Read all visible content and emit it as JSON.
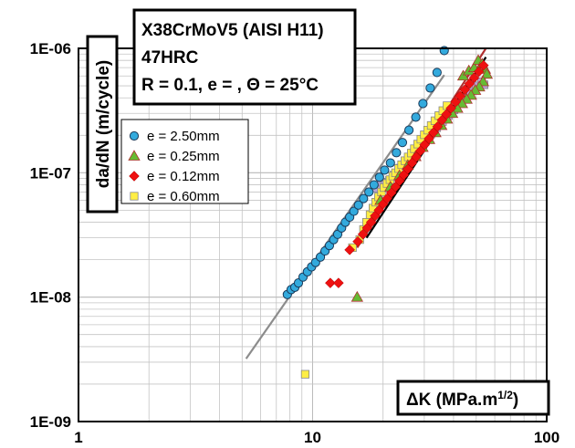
{
  "chart_data": {
    "type": "scatter",
    "title_lines": [
      "X38CrMoV5 (AISI H11)",
      "47HRC",
      "R = 0.1, e = , Θ = 25°C"
    ],
    "ylabel": "da/dN (m/cycle)",
    "xlabel": "ΔK (MPa.m",
    "xlabel_sup": "1/2",
    "xlabel_end": ")",
    "x_scale": "log",
    "y_scale": "log",
    "xlim": [
      1,
      100
    ],
    "ylim": [
      1e-09,
      1e-06
    ],
    "x_tick_labels": [
      "1",
      "10",
      "100"
    ],
    "y_tick_labels": [
      "1E-09",
      "1E-08",
      "1E-07",
      "1E-06"
    ],
    "grid": true,
    "legend_position": "upper-left",
    "colors": {
      "blue": "#33aadd",
      "green": "#66bb33",
      "red": "#ee1111",
      "yellow": "#ffee44",
      "purple": "#b8a4d4"
    },
    "series": [
      {
        "name": "e = 2.50mm",
        "marker": "circle",
        "color": "#33aadd",
        "points": [
          [
            7.8,
            1.05e-08
          ],
          [
            8.1,
            1.15e-08
          ],
          [
            8.4,
            1.2e-08
          ],
          [
            8.7,
            1.3e-08
          ],
          [
            9.1,
            1.45e-08
          ],
          [
            9.5,
            1.6e-08
          ],
          [
            9.9,
            1.75e-08
          ],
          [
            10.3,
            1.9e-08
          ],
          [
            10.8,
            2.1e-08
          ],
          [
            11.3,
            2.35e-08
          ],
          [
            11.8,
            2.6e-08
          ],
          [
            12.3,
            2.9e-08
          ],
          [
            12.8,
            3.2e-08
          ],
          [
            13.3,
            3.6e-08
          ],
          [
            13.8,
            4e-08
          ],
          [
            14.4,
            4.4e-08
          ],
          [
            15.0,
            4.9e-08
          ],
          [
            15.7,
            5.5e-08
          ],
          [
            16.5,
            6.2e-08
          ],
          [
            17.4,
            7e-08
          ],
          [
            18.3,
            8e-08
          ],
          [
            19.3,
            9.2e-08
          ],
          [
            20.3,
            1.05e-07
          ],
          [
            21.5,
            1.2e-07
          ],
          [
            22.8,
            1.45e-07
          ],
          [
            24.2,
            1.75e-07
          ],
          [
            25.8,
            2.2e-07
          ],
          [
            27.6,
            2.8e-07
          ],
          [
            29.6,
            3.6e-07
          ],
          [
            31.8,
            4.8e-07
          ],
          [
            34.0,
            6.4e-07
          ],
          [
            36.5,
            9.6e-07
          ]
        ]
      },
      {
        "name": "e = 0.25mm",
        "marker": "triangle",
        "color": "#66bb33",
        "points": [
          [
            15.5,
            1e-08
          ],
          [
            44.0,
            6e-07
          ],
          [
            46.5,
            6.6e-07
          ],
          [
            49.0,
            7e-07
          ],
          [
            51.0,
            8e-07
          ],
          [
            53.0,
            7.5e-07
          ],
          [
            54.5,
            6.8e-07
          ],
          [
            55.5,
            6.2e-07
          ],
          [
            53.5,
            5.4e-07
          ],
          [
            51.5,
            4.9e-07
          ],
          [
            49.5,
            4.6e-07
          ],
          [
            47.5,
            4.2e-07
          ],
          [
            45.5,
            3.9e-07
          ],
          [
            43.5,
            3.6e-07
          ],
          [
            41.5,
            3.3e-07
          ],
          [
            39.5,
            3e-07
          ],
          [
            37.5,
            2.7e-07
          ],
          [
            35.5,
            2.4e-07
          ],
          [
            33.5,
            2.1e-07
          ],
          [
            31.5,
            1.85e-07
          ],
          [
            29.5,
            1.6e-07
          ],
          [
            27.5,
            1.35e-07
          ],
          [
            25.5,
            1.15e-07
          ],
          [
            23.5,
            9.5e-08
          ],
          [
            21.5,
            7.7e-08
          ],
          [
            19.5,
            6e-08
          ]
        ]
      },
      {
        "name": "e = 0.12mm",
        "marker": "diamond",
        "color": "#ee1111",
        "points": [
          [
            11.9,
            1.3e-08
          ],
          [
            12.9,
            1.3e-08
          ],
          [
            14.4,
            2.4e-08
          ],
          [
            15.6,
            2.8e-08
          ],
          [
            16.4,
            3.2e-08
          ],
          [
            17.1,
            3.6e-08
          ],
          [
            17.8,
            4e-08
          ],
          [
            18.5,
            4.5e-08
          ],
          [
            19.2,
            5e-08
          ],
          [
            20.0,
            5.6e-08
          ],
          [
            20.8,
            6.2e-08
          ],
          [
            21.7,
            6.9e-08
          ],
          [
            22.6,
            7.7e-08
          ],
          [
            23.5,
            8.6e-08
          ],
          [
            24.5,
            9.6e-08
          ],
          [
            25.5,
            1.07e-07
          ],
          [
            26.6,
            1.2e-07
          ],
          [
            27.7,
            1.34e-07
          ],
          [
            28.9,
            1.5e-07
          ],
          [
            30.1,
            1.68e-07
          ],
          [
            31.4,
            1.88e-07
          ],
          [
            32.8,
            2.1e-07
          ],
          [
            34.2,
            2.35e-07
          ],
          [
            35.7,
            2.65e-07
          ],
          [
            37.3,
            2.95e-07
          ],
          [
            39.0,
            3.3e-07
          ],
          [
            40.8,
            3.7e-07
          ],
          [
            42.7,
            4.15e-07
          ],
          [
            44.7,
            4.65e-07
          ],
          [
            46.8,
            5.2e-07
          ],
          [
            49.0,
            5.8e-07
          ],
          [
            51.3,
            6.5e-07
          ],
          [
            53.7,
            7.3e-07
          ]
        ]
      },
      {
        "name": "e = 0.60mm",
        "marker": "square",
        "color": "#ffee44",
        "points": [
          [
            9.3,
            2.4e-09
          ],
          [
            14.8,
            2.5e-08
          ],
          [
            15.9,
            2.9e-08
          ],
          [
            16.5,
            3.5e-08
          ],
          [
            17.0,
            4e-08
          ],
          [
            17.6,
            4.6e-08
          ],
          [
            18.1,
            5.2e-08
          ],
          [
            18.6,
            5.8e-08
          ],
          [
            19.1,
            6.4e-08
          ],
          [
            19.7,
            7e-08
          ],
          [
            20.2,
            7.6e-08
          ],
          [
            20.8,
            8.2e-08
          ],
          [
            21.4,
            8.8e-08
          ],
          [
            22.0,
            9.4e-08
          ],
          [
            22.6,
            1e-07
          ],
          [
            23.3,
            1.08e-07
          ],
          [
            24.0,
            1.16e-07
          ],
          [
            24.8,
            1.25e-07
          ],
          [
            25.6,
            1.34e-07
          ],
          [
            26.4,
            1.44e-07
          ],
          [
            27.2,
            1.56e-07
          ],
          [
            28.1,
            1.7e-07
          ],
          [
            29.0,
            1.86e-07
          ],
          [
            30.0,
            2.02e-07
          ],
          [
            31.0,
            2.2e-07
          ],
          [
            32.1,
            2.4e-07
          ],
          [
            33.3,
            2.62e-07
          ],
          [
            34.6,
            2.88e-07
          ],
          [
            36.0,
            3.16e-07
          ],
          [
            37.5,
            3.46e-07
          ]
        ]
      },
      {
        "name": "",
        "marker": "square",
        "color": "#b8a4d4",
        "points": [
          [
            18.8,
            7.5e-08
          ],
          [
            19.6,
            8.4e-08
          ],
          [
            20.4,
            8e-08
          ],
          [
            21.3,
            8.7e-08
          ],
          [
            22.3,
            9.6e-08
          ],
          [
            23.6,
            1.09e-07
          ],
          [
            25.1,
            1.25e-07
          ],
          [
            26.7,
            1.42e-07
          ],
          [
            28.4,
            1.6e-07
          ],
          [
            30.2,
            1.82e-07
          ],
          [
            32.0,
            2.05e-07
          ],
          [
            33.9,
            2.3e-07
          ],
          [
            35.9,
            2.58e-07
          ],
          [
            38.0,
            2.88e-07
          ],
          [
            40.2,
            3.2e-07
          ],
          [
            42.5,
            3.6e-07
          ],
          [
            44.9,
            4e-07
          ],
          [
            47.4,
            4.5e-07
          ],
          [
            50.0,
            5e-07
          ],
          [
            52.7,
            5.4e-07
          ],
          [
            54.0,
            5.1e-07
          ]
        ]
      }
    ],
    "trend_lines": [
      {
        "color": "#8c8c8c",
        "from": [
          5.2,
          3.2e-09
        ],
        "to": [
          36.5,
          6.1e-07
        ]
      },
      {
        "color": "#b03030",
        "from": [
          15.5,
          2.5e-08
        ],
        "to": [
          55.0,
          1e-06
        ]
      },
      {
        "color": "#000000",
        "from": [
          17.0,
          3e-08
        ],
        "to": [
          55.0,
          8.5e-07
        ]
      }
    ]
  }
}
